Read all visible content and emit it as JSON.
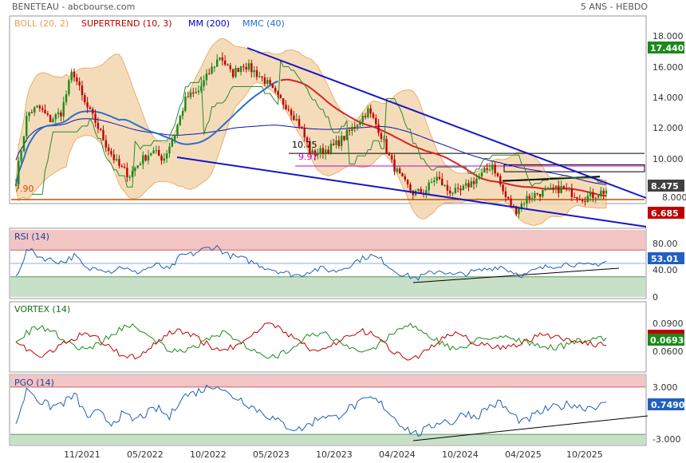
{
  "header": {
    "title": "BENETEAU - abcbourse.com",
    "period": "5 ANS - HEBDO"
  },
  "legend": [
    {
      "text": "BOLL (20, 2)",
      "color": "#e8a050"
    },
    {
      "text": "SUPERTREND (10, 3)",
      "color": "#c00000"
    },
    {
      "text": "MM (200)",
      "color": "#0000c0"
    },
    {
      "text": "MMC (40)",
      "color": "#1f6fc0"
    }
  ],
  "colors": {
    "up": "#1a8a1a",
    "down": "#c00000",
    "boll": "#e8a050",
    "boll_fill": "#f3d6b0",
    "mm200": "#1010b0",
    "mmc40": "#2a70c8",
    "supertrend_up": "#1a8a1a",
    "supertrend_down": "#c00000",
    "ma_red": "#e02020",
    "trend_blue": "#1515c8",
    "support": "#c05000",
    "zone_red": "#f2c4c4",
    "zone_green": "#c8e0c8"
  },
  "price_annotations": {
    "level_1075": "10.75",
    "level_997": "9.97",
    "level_790": "7.90"
  },
  "x_labels": [
    "11/2021",
    "05/2022",
    "10/2022",
    "05/2023",
    "10/2023",
    "04/2024",
    "10/2024",
    "04/2025",
    "10/2025"
  ],
  "chart_data": [
    {
      "type": "candlestick",
      "title": "BENETEAU",
      "y_ticks": [
        "18.000",
        "16.000",
        "14.000",
        "12.000",
        "10.000",
        "8.000"
      ],
      "ylim": [
        6.0,
        18.6
      ],
      "badges": [
        {
          "value": "17.440",
          "color": "#1a8a1a"
        },
        {
          "value": "8.475",
          "color": "#404040"
        },
        {
          "value": "6.685",
          "color": "#c00000"
        }
      ],
      "close_series": [
        {
          "x": "2021-08",
          "y": 9.1
        },
        {
          "x": "2021-09",
          "y": 13.2
        },
        {
          "x": "2021-10",
          "y": 13.6
        },
        {
          "x": "2021-11",
          "y": 12.8
        },
        {
          "x": "2021-12",
          "y": 13.3
        },
        {
          "x": "2022-01",
          "y": 15.9
        },
        {
          "x": "2022-02",
          "y": 13.9
        },
        {
          "x": "2022-03",
          "y": 12.7
        },
        {
          "x": "2022-04",
          "y": 11.2
        },
        {
          "x": "2022-05",
          "y": 10.0
        },
        {
          "x": "2022-06",
          "y": 9.4
        },
        {
          "x": "2022-07",
          "y": 10.3
        },
        {
          "x": "2022-08",
          "y": 10.9
        },
        {
          "x": "2022-09",
          "y": 10.4
        },
        {
          "x": "2022-10",
          "y": 12.0
        },
        {
          "x": "2022-11",
          "y": 14.2
        },
        {
          "x": "2022-12",
          "y": 14.5
        },
        {
          "x": "2023-01",
          "y": 15.7
        },
        {
          "x": "2023-02",
          "y": 16.8
        },
        {
          "x": "2023-03",
          "y": 15.6
        },
        {
          "x": "2023-04",
          "y": 16.3
        },
        {
          "x": "2023-05",
          "y": 15.8
        },
        {
          "x": "2023-06",
          "y": 15.2
        },
        {
          "x": "2023-07",
          "y": 14.2
        },
        {
          "x": "2023-08",
          "y": 13.6
        },
        {
          "x": "2023-09",
          "y": 12.5
        },
        {
          "x": "2023-10",
          "y": 10.7
        },
        {
          "x": "2023-11",
          "y": 10.9
        },
        {
          "x": "2023-12",
          "y": 11.2
        },
        {
          "x": "2024-01",
          "y": 11.8
        },
        {
          "x": "2024-02",
          "y": 12.6
        },
        {
          "x": "2024-03",
          "y": 13.4
        },
        {
          "x": "2024-04",
          "y": 12.2
        },
        {
          "x": "2024-05",
          "y": 10.3
        },
        {
          "x": "2024-06",
          "y": 9.1
        },
        {
          "x": "2024-07",
          "y": 8.3
        },
        {
          "x": "2024-08",
          "y": 8.4
        },
        {
          "x": "2024-09",
          "y": 9.3
        },
        {
          "x": "2024-10",
          "y": 8.5
        },
        {
          "x": "2024-11",
          "y": 8.3
        },
        {
          "x": "2024-12",
          "y": 8.9
        },
        {
          "x": "2025-01",
          "y": 9.4
        },
        {
          "x": "2025-02",
          "y": 10.1
        },
        {
          "x": "2025-03",
          "y": 8.2
        },
        {
          "x": "2025-04",
          "y": 7.2
        },
        {
          "x": "2025-05",
          "y": 8.0
        },
        {
          "x": "2025-06",
          "y": 8.3
        },
        {
          "x": "2025-07",
          "y": 8.4
        },
        {
          "x": "2025-08",
          "y": 8.6
        },
        {
          "x": "2025-09",
          "y": 8.3
        },
        {
          "x": "2025-10",
          "y": 8.0
        },
        {
          "x": "2025-11",
          "y": 8.2
        },
        {
          "x": "2025-12",
          "y": 8.47
        }
      ]
    },
    {
      "type": "line",
      "title": "RSI (14)",
      "y_ticks": [
        "80.00",
        "40.00",
        "0"
      ],
      "ylim": [
        0,
        100
      ],
      "zones": {
        "upper": 70,
        "lower": 30
      },
      "current": "53.01",
      "values": [
        30,
        72,
        60,
        55,
        52,
        62,
        40,
        45,
        38,
        46,
        35,
        42,
        48,
        40,
        62,
        64,
        72,
        75,
        62,
        58,
        52,
        45,
        40,
        35,
        32,
        40,
        42,
        38,
        45,
        55,
        62,
        55,
        40,
        32,
        28,
        35,
        40,
        32,
        35,
        38,
        42,
        46,
        38,
        32,
        40,
        45,
        48,
        50,
        46,
        48,
        53
      ]
    },
    {
      "type": "line",
      "title": "VORTEX (14)",
      "y_ticks": [
        "0.0900",
        "0.0600"
      ],
      "ylim": [
        0.045,
        0.105
      ],
      "current_plus": "0.0693",
      "current_minus": "0.0760"
    },
    {
      "type": "line",
      "title": "PGO (14)",
      "y_ticks": [
        "3.000",
        "-3.000"
      ],
      "ylim": [
        -4.3,
        4.5
      ],
      "zones": {
        "upper": 3.0,
        "lower": -3.0
      },
      "current": "0.7490",
      "values": [
        -1.6,
        3.0,
        1.2,
        0.5,
        1.0,
        2.0,
        -0.8,
        -0.2,
        -1.6,
        -0.5,
        -1.2,
        -0.4,
        0.3,
        -0.9,
        1.8,
        2.2,
        2.8,
        3.4,
        2.0,
        1.5,
        0.5,
        -0.3,
        -1.2,
        -2.0,
        -2.4,
        -1.6,
        -0.5,
        -1.0,
        0.2,
        0.8,
        1.6,
        0.8,
        -0.8,
        -2.2,
        -3.0,
        -2.2,
        -1.2,
        -1.5,
        -0.2,
        -0.8,
        0.5,
        1.0,
        -0.5,
        -1.5,
        -0.5,
        0.2,
        0.5,
        0.9,
        0.4,
        0.6,
        0.75
      ]
    }
  ]
}
